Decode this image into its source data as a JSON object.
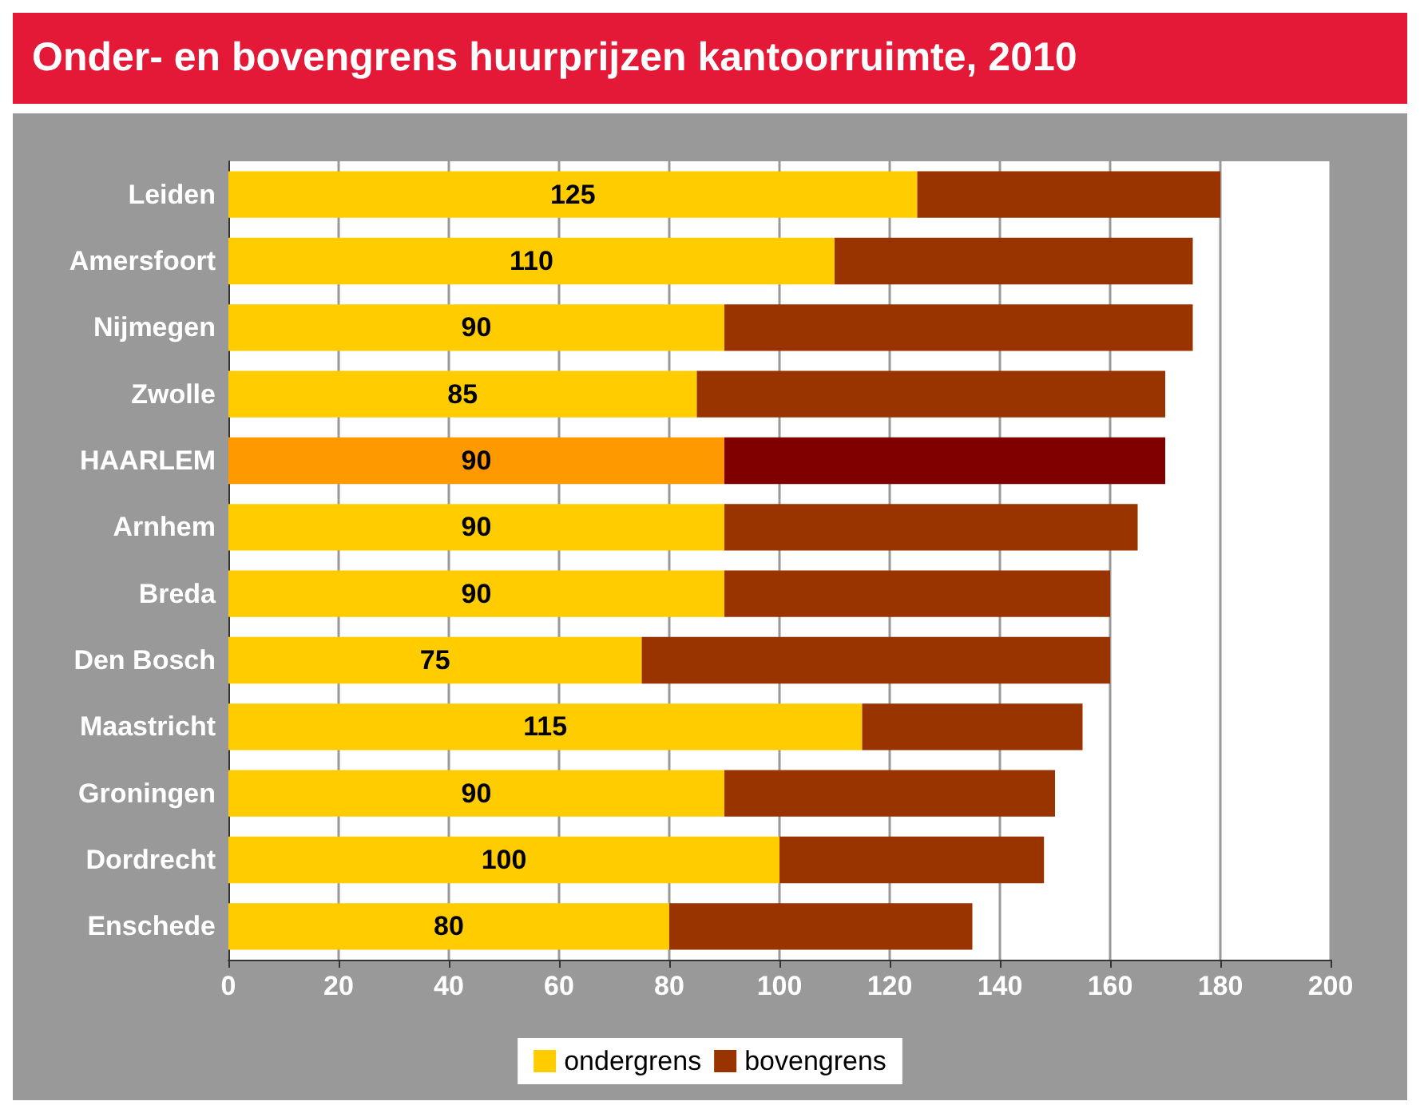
{
  "chart_data": {
    "type": "bar",
    "orientation": "horizontal",
    "stacked": true,
    "title": "Onder- en bovengrens huurprijzen kantoorruimte, 2010",
    "categories": [
      "Leiden",
      "Amersfoort",
      "Nijmegen",
      "Zwolle",
      "HAARLEM",
      "Arnhem",
      "Breda",
      "Den Bosch",
      "Maastricht",
      "Groningen",
      "Dordrecht",
      "Enschede"
    ],
    "series": [
      {
        "name": "ondergrens",
        "color": "#ffcc00",
        "colors": [
          "#ffcc00",
          "#ffcc00",
          "#ffcc00",
          "#ffcc00",
          "#ff9900",
          "#ffcc00",
          "#ffcc00",
          "#ffcc00",
          "#ffcc00",
          "#ffcc00",
          "#ffcc00",
          "#ffcc00"
        ],
        "values": [
          125,
          110,
          90,
          85,
          90,
          90,
          90,
          75,
          115,
          90,
          100,
          80
        ],
        "value_labels": [
          "125",
          "110",
          "90",
          "85",
          "90",
          "90",
          "90",
          "75",
          "115",
          "90",
          "100",
          "80"
        ]
      },
      {
        "name": "bovengrens",
        "color": "#993300",
        "colors": [
          "#993300",
          "#993300",
          "#993300",
          "#993300",
          "#800000",
          "#993300",
          "#993300",
          "#993300",
          "#993300",
          "#993300",
          "#993300",
          "#993300"
        ],
        "values": [
          55,
          65,
          85,
          85,
          80,
          75,
          70,
          85,
          40,
          60,
          48,
          55
        ]
      }
    ],
    "xlim": [
      0,
      200
    ],
    "xticks": [
      0,
      20,
      40,
      60,
      80,
      100,
      120,
      140,
      160,
      180,
      200
    ],
    "grid": "x",
    "legend": "bottom"
  }
}
